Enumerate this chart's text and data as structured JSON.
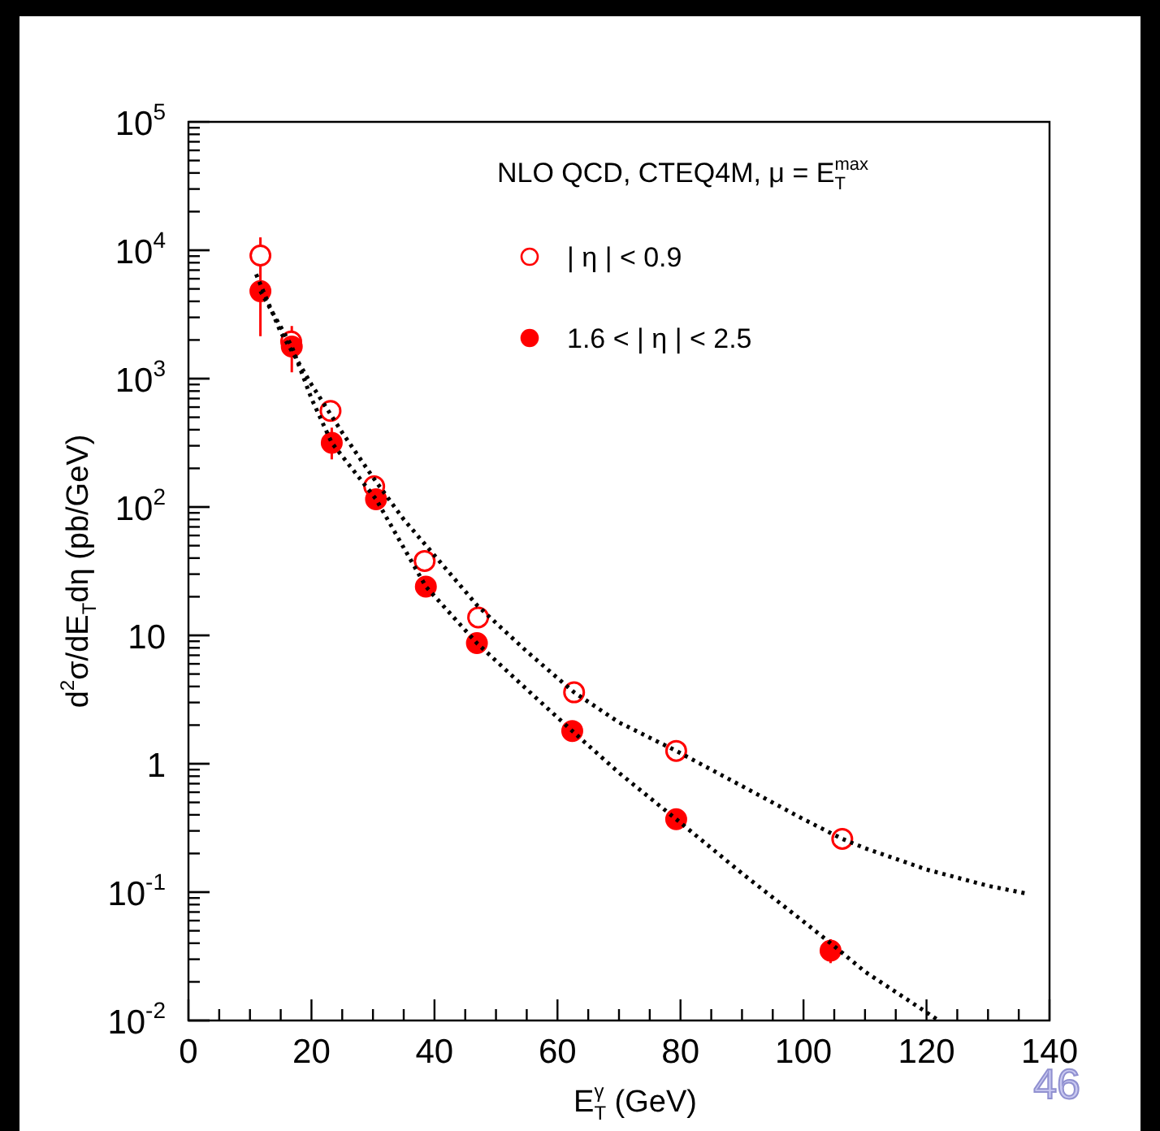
{
  "chart_data": {
    "type": "scatter",
    "xlabel": "E$_{T}$$^{γ}$ (GeV)",
    "ylabel": "d$^{2}$σ/dE$_{T}$dη (pb/GeV)",
    "legend_title": "NLO QCD, CTEQ4M, μ = E$_{T}$$^{max}$",
    "annotations": [
      "46"
    ],
    "log": "y",
    "xlim": [
      0,
      140
    ],
    "xticks": [
      0,
      20,
      40,
      60,
      80,
      100,
      120,
      140
    ],
    "ylim": [
      0.01,
      100000
    ],
    "yticks": [
      {
        "value": 0.01,
        "label": "10$^{-2}$"
      },
      {
        "value": 0.1,
        "label": "10$^{-1}$"
      },
      1,
      10,
      {
        "value": 100,
        "label": "10$^{2}$"
      },
      {
        "value": 1000,
        "label": "10$^{3}$"
      },
      {
        "value": 10000,
        "label": "10$^{4}$"
      },
      {
        "value": 100000,
        "label": "10$^{5}$"
      }
    ],
    "legend": "top right",
    "series": [
      {
        "type": "scatter",
        "name": "| η | < 0.9",
        "color": "#ff0000",
        "marker": "circle",
        "x": [
          11.7,
          16.7,
          23.1,
          30.2,
          38.4,
          47.1,
          62.7,
          79.3,
          106.3
        ],
        "values": [
          9100,
          1950,
          560,
          145,
          38,
          13.8,
          3.6,
          1.26,
          0.26
        ],
        "errors": [
          [
            7700,
            12600
          ],
          null,
          null,
          null,
          null,
          null,
          null,
          null,
          null
        ]
      },
      {
        "type": "scatter",
        "name": "1.6 < | η | < 2.5",
        "color": "#ff0000",
        "marker": "circle",
        "x": [
          11.7,
          16.8,
          23.3,
          30.5,
          38.6,
          46.9,
          62.4,
          79.3,
          104.4
        ],
        "values": [
          4800,
          1780,
          316,
          115,
          24,
          8.7,
          1.8,
          0.37,
          0.035
        ],
        "errors": [
          [
            2140,
            7700
          ],
          [
            1120,
            2570
          ],
          [
            235,
            415
          ],
          null,
          null,
          null,
          null,
          null,
          [
            0.028,
            0.043
          ]
        ]
      },
      {
        "type": "line",
        "color": "#000000",
        "line_style": "dotted",
        "marker": "none",
        "x": [
          11,
          15,
          20,
          25,
          30,
          35,
          40,
          47,
          55,
          62.7,
          70,
          79.3,
          90,
          100,
          106.3,
          110,
          120,
          130,
          136
        ],
        "values": [
          6500,
          2300,
          900,
          380,
          170,
          80,
          42,
          17,
          7.5,
          3.6,
          2.1,
          1.26,
          0.67,
          0.37,
          0.26,
          0.22,
          0.15,
          0.112,
          0.098
        ]
      },
      {
        "type": "line",
        "color": "#000000",
        "line_style": "dotted",
        "marker": "none",
        "x": [
          11.7,
          16.8,
          20,
          23.3,
          30.5,
          38.6,
          46.9,
          55,
          62.4,
          70,
          79.3,
          90,
          100,
          104.4,
          110,
          122
        ],
        "values": [
          4800,
          1780,
          700,
          316,
          115,
          24,
          8.7,
          3.8,
          1.8,
          0.85,
          0.37,
          0.14,
          0.059,
          0.04,
          0.024,
          0.01
        ]
      }
    ]
  }
}
